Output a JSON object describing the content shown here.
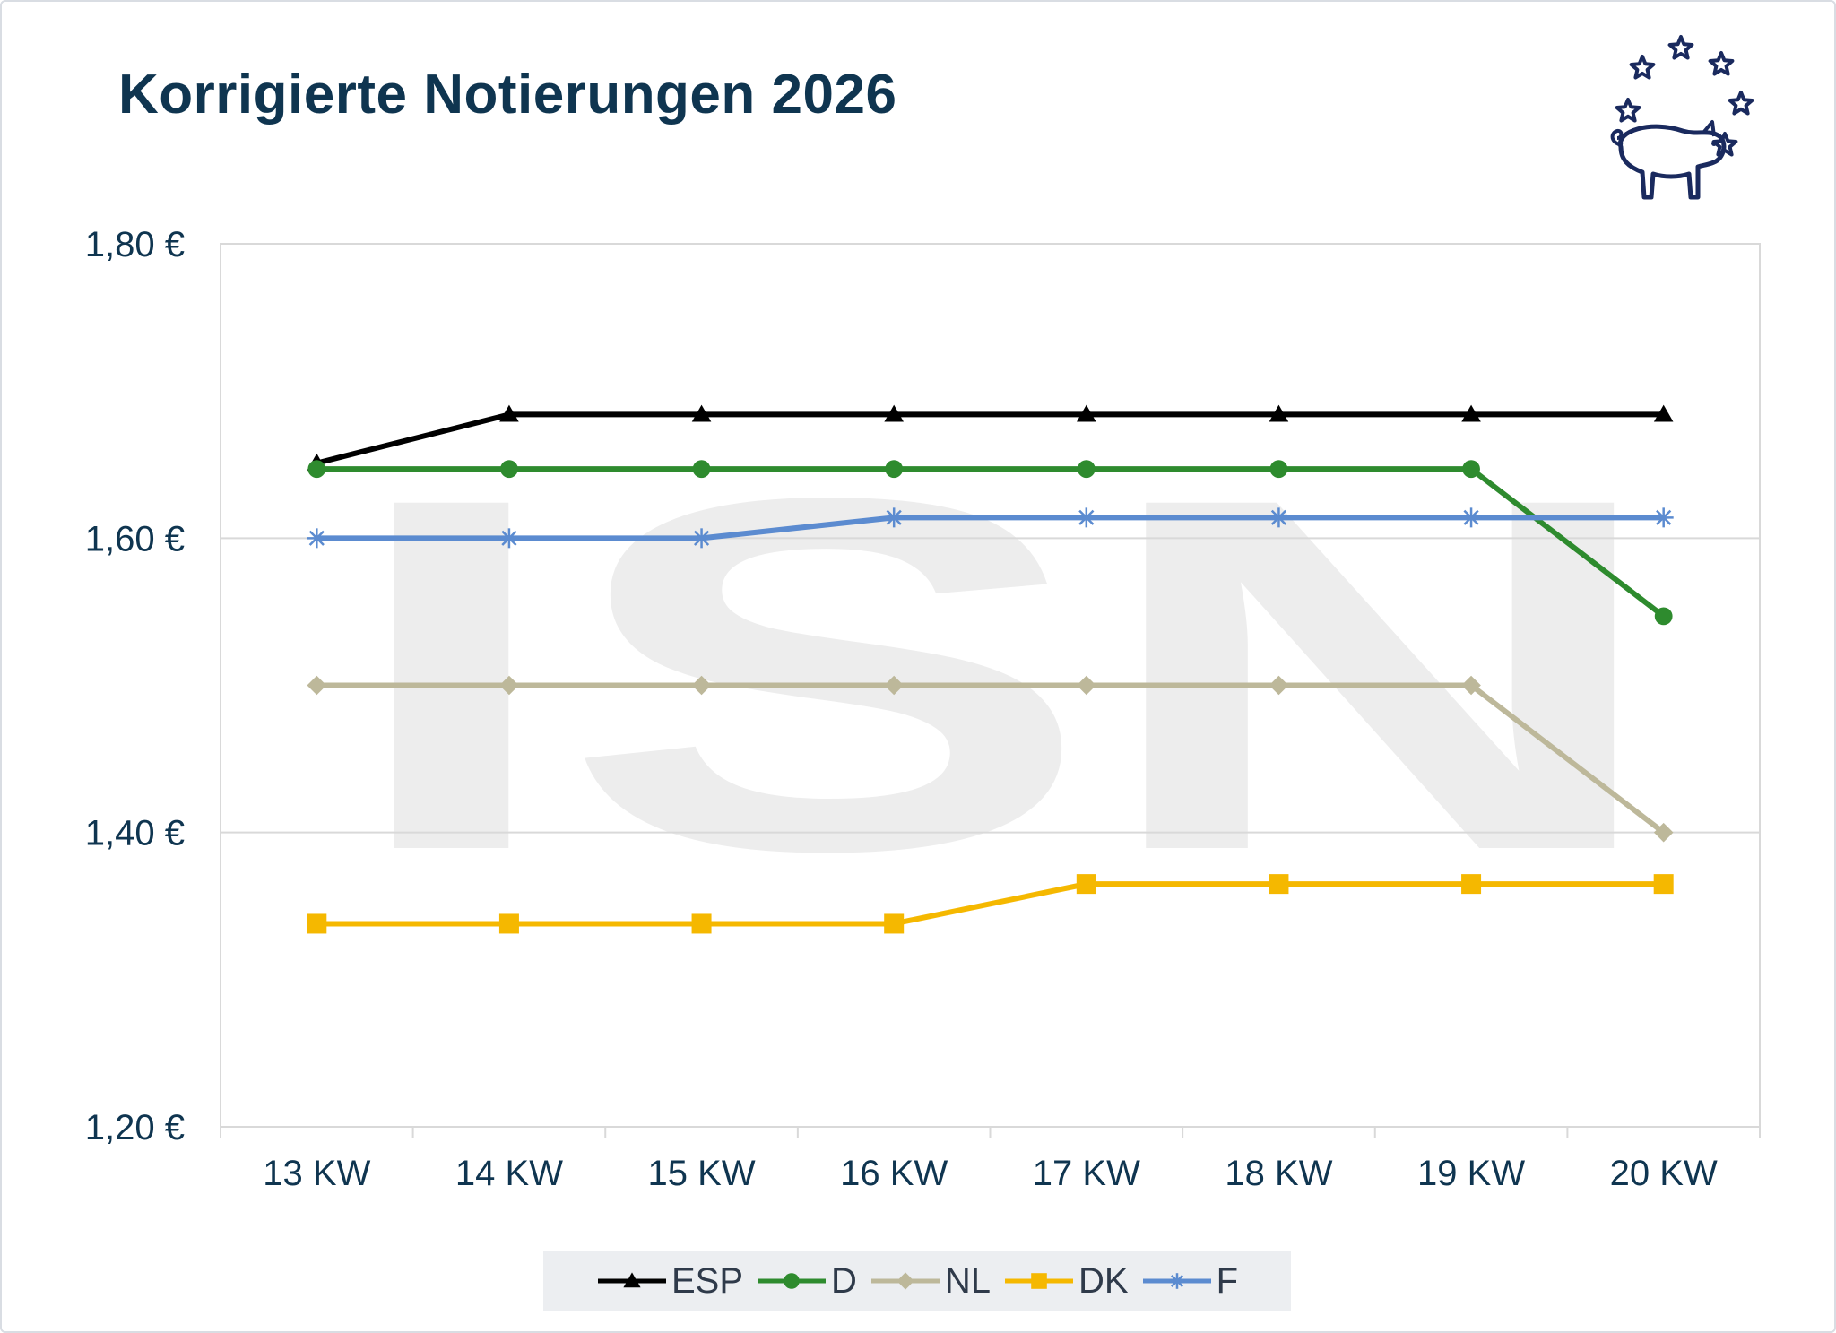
{
  "chart_data": {
    "type": "line",
    "title": "Korrigierte Notierungen 2026",
    "categories": [
      "13 KW",
      "14 KW",
      "15 KW",
      "16 KW",
      "17 KW",
      "18 KW",
      "19 KW",
      "20 KW"
    ],
    "ylim": [
      1.2,
      1.8
    ],
    "yticks": [
      1.2,
      1.4,
      1.6,
      1.8
    ],
    "ytick_labels": [
      "1,20 €",
      "1,40 €",
      "1,60 €",
      "1,80 €"
    ],
    "grid": true,
    "legend_position": "bottom",
    "series": [
      {
        "name": "ESP",
        "color": "#000000",
        "marker": "triangle",
        "values": [
          1.651,
          1.684,
          1.684,
          1.684,
          1.684,
          1.684,
          1.684,
          1.684
        ]
      },
      {
        "name": "D",
        "color": "#2e8b2e",
        "marker": "circle",
        "values": [
          1.647,
          1.647,
          1.647,
          1.647,
          1.647,
          1.647,
          1.647,
          1.547
        ]
      },
      {
        "name": "NL",
        "color": "#bdb89a",
        "marker": "diamond",
        "values": [
          1.5,
          1.5,
          1.5,
          1.5,
          1.5,
          1.5,
          1.5,
          1.4
        ]
      },
      {
        "name": "DK",
        "color": "#f5b800",
        "marker": "square",
        "values": [
          1.338,
          1.338,
          1.338,
          1.338,
          1.365,
          1.365,
          1.365,
          1.365
        ]
      },
      {
        "name": "F",
        "color": "#5b8bd0",
        "marker": "asterisk",
        "values": [
          1.6,
          1.6,
          1.6,
          1.614,
          1.614,
          1.614,
          1.614,
          1.614
        ]
      }
    ]
  },
  "watermark": "ISN",
  "logo": {
    "icon": "pig-with-stars-icon",
    "color": "#1a2a5e"
  }
}
